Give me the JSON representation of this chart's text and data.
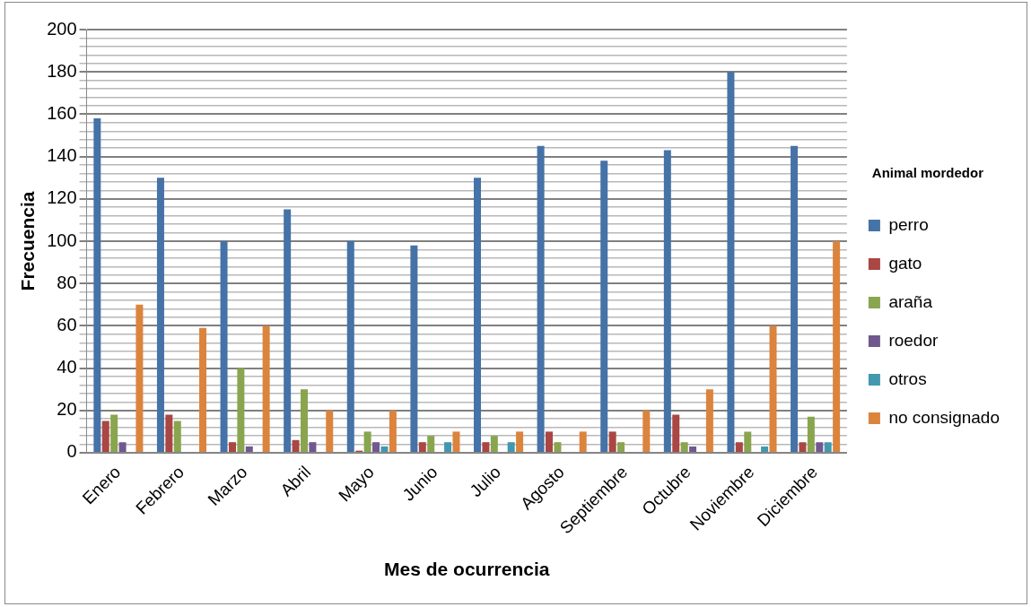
{
  "chart_data": {
    "type": "bar",
    "xlabel": "Mes de ocurrencia",
    "ylabel": "Frecuencia",
    "legend_title": "Animal mordedor",
    "legend": "right",
    "grid": "y",
    "categories": [
      "Enero",
      "Febrero",
      "Marzo",
      "Abril",
      "Mayo",
      "Junio",
      "Julio",
      "Agosto",
      "Septiembre",
      "Octubre",
      "Noviembre",
      "Diciembre"
    ],
    "ylim": [
      0,
      200
    ],
    "yticks": [
      0,
      {
        "value": 4,
        "label": null
      },
      {
        "value": 8,
        "label": null
      },
      {
        "value": 12,
        "label": null
      },
      {
        "value": 16,
        "label": null
      },
      20,
      {
        "value": 24,
        "label": null
      },
      {
        "value": 28,
        "label": null
      },
      {
        "value": 32,
        "label": null
      },
      {
        "value": 36,
        "label": null
      },
      40,
      {
        "value": 44,
        "label": null
      },
      {
        "value": 48,
        "label": null
      },
      {
        "value": 52,
        "label": null
      },
      {
        "value": 56,
        "label": null
      },
      60,
      {
        "value": 64,
        "label": null
      },
      {
        "value": 68,
        "label": null
      },
      {
        "value": 72,
        "label": null
      },
      {
        "value": 76,
        "label": null
      },
      80,
      {
        "value": 84,
        "label": null
      },
      {
        "value": 88,
        "label": null
      },
      {
        "value": 92,
        "label": null
      },
      {
        "value": 96,
        "label": null
      },
      100,
      {
        "value": 104,
        "label": null
      },
      {
        "value": 108,
        "label": null
      },
      {
        "value": 112,
        "label": null
      },
      {
        "value": 116,
        "label": null
      },
      120,
      {
        "value": 124,
        "label": null
      },
      {
        "value": 128,
        "label": null
      },
      {
        "value": 132,
        "label": null
      },
      {
        "value": 136,
        "label": null
      },
      140,
      {
        "value": 144,
        "label": null
      },
      {
        "value": 148,
        "label": null
      },
      {
        "value": 152,
        "label": null
      },
      {
        "value": 156,
        "label": null
      },
      160,
      {
        "value": 164,
        "label": null
      },
      {
        "value": 168,
        "label": null
      },
      {
        "value": 172,
        "label": null
      },
      {
        "value": 176,
        "label": null
      },
      180,
      {
        "value": 184,
        "label": null
      },
      {
        "value": 188,
        "label": null
      },
      {
        "value": 192,
        "label": null
      },
      {
        "value": 196,
        "label": null
      },
      200
    ],
    "series": [
      {
        "name": "perro",
        "color": "#4572a7",
        "values": [
          158,
          130,
          100,
          115,
          100,
          98,
          130,
          145,
          138,
          143,
          180,
          145
        ]
      },
      {
        "name": "gato",
        "color": "#aa4643",
        "values": [
          15,
          18,
          5,
          6,
          1,
          5,
          5,
          10,
          10,
          18,
          5,
          5
        ]
      },
      {
        "name": "araña",
        "color": "#89a54e",
        "values": [
          18,
          15,
          40,
          30,
          10,
          8,
          8,
          5,
          5,
          5,
          10,
          17
        ]
      },
      {
        "name": "roedor",
        "color": "#71588f",
        "values": [
          5,
          null,
          3,
          5,
          5,
          null,
          null,
          null,
          null,
          3,
          null,
          5
        ]
      },
      {
        "name": "otros",
        "color": "#4198af",
        "values": [
          null,
          null,
          null,
          null,
          3,
          5,
          5,
          null,
          null,
          null,
          3,
          5
        ]
      },
      {
        "name": "no consignado",
        "color": "#db843d",
        "values": [
          70,
          59,
          60,
          20,
          20,
          10,
          10,
          10,
          20,
          30,
          60,
          100
        ]
      }
    ]
  }
}
